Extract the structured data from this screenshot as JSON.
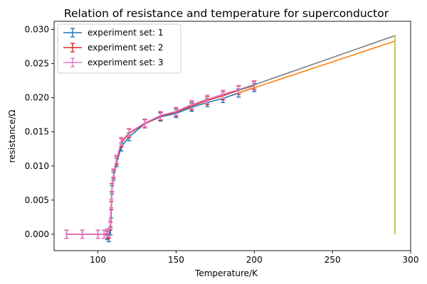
{
  "chart_data": {
    "type": "line",
    "title": "Relation of resistance and temperature for superconductor",
    "xlabel": "Temperature/K",
    "ylabel": "resistance/Ω",
    "xlim": [
      72,
      300
    ],
    "ylim": [
      -0.0024,
      0.0312
    ],
    "xticks": [
      100,
      150,
      200,
      250,
      300
    ],
    "yticks": [
      0.0,
      0.005,
      0.01,
      0.015,
      0.02,
      0.025,
      0.03
    ],
    "ytick_labels": [
      "0.000",
      "0.005",
      "0.010",
      "0.015",
      "0.020",
      "0.025",
      "0.030"
    ],
    "grid": false,
    "legend_position": "top-left",
    "series": [
      {
        "name": "experiment set: 1",
        "color": "#1f77b4",
        "errorbars": true,
        "x": [
          80,
          90,
          100,
          104,
          106,
          107,
          108,
          108.5,
          109,
          110,
          112,
          115,
          120,
          130,
          140,
          150,
          160,
          170,
          180,
          190,
          200
        ],
        "y": [
          0.0,
          0.0,
          0.0,
          0.0,
          -0.0002,
          -0.0005,
          0.0005,
          0.003,
          0.0065,
          0.0085,
          0.0105,
          0.0128,
          0.0143,
          0.0162,
          0.0172,
          0.0177,
          0.0186,
          0.0193,
          0.0199,
          0.0207,
          0.0215
        ],
        "yerr": [
          0.0006,
          0.0006,
          0.0006,
          0.0006,
          0.0006,
          0.0006,
          0.0006,
          0.0006,
          0.0006,
          0.0006,
          0.0006,
          0.0006,
          0.0006,
          0.0006,
          0.0006,
          0.0006,
          0.0006,
          0.0006,
          0.0006,
          0.0006,
          0.0006
        ]
      },
      {
        "name": "experiment set: 2",
        "color": "#d62728",
        "errorbars": true,
        "x": [
          80,
          90,
          100,
          104,
          106,
          107,
          108,
          108.5,
          109,
          110,
          112,
          115,
          120,
          130,
          140,
          150,
          160,
          170,
          180,
          190,
          200
        ],
        "y": [
          0.0,
          0.0,
          0.0,
          0.0,
          0.0,
          0.0,
          0.0012,
          0.0042,
          0.0068,
          0.0088,
          0.0108,
          0.0134,
          0.0148,
          0.0162,
          0.0173,
          0.0179,
          0.0188,
          0.0196,
          0.0203,
          0.0211,
          0.0218
        ],
        "yerr": [
          0.0006,
          0.0006,
          0.0006,
          0.0006,
          0.0006,
          0.0006,
          0.0006,
          0.0006,
          0.0006,
          0.0006,
          0.0006,
          0.0006,
          0.0006,
          0.0006,
          0.0006,
          0.0006,
          0.0006,
          0.0006,
          0.0006,
          0.0006,
          0.0006
        ]
      },
      {
        "name": "experiment set: 3",
        "color": "#e377c2",
        "errorbars": true,
        "x": [
          80,
          90,
          100,
          104,
          106,
          107,
          108,
          108.5,
          109,
          110,
          112,
          115,
          120,
          130,
          140,
          150,
          160,
          170,
          180,
          190,
          200
        ],
        "y": [
          0.0,
          0.0,
          0.0,
          0.0,
          0.0002,
          0.0002,
          0.0015,
          0.0045,
          0.0069,
          0.009,
          0.011,
          0.0136,
          0.0149,
          0.0163,
          0.0174,
          0.018,
          0.019,
          0.0198,
          0.0205,
          0.0212,
          0.0219
        ],
        "yerr": [
          0.0006,
          0.0006,
          0.0006,
          0.0006,
          0.0006,
          0.0006,
          0.0006,
          0.0006,
          0.0006,
          0.0006,
          0.0006,
          0.0006,
          0.0006,
          0.0006,
          0.0006,
          0.0006,
          0.0006,
          0.0006,
          0.0006,
          0.0006,
          0.0006
        ]
      },
      {
        "color": "#7f7f7f",
        "errorbars": false,
        "x": [
          190,
          290
        ],
        "y": [
          0.0211,
          0.0291
        ]
      },
      {
        "color": "#ff7f0e",
        "errorbars": false,
        "x": [
          190,
          290
        ],
        "y": [
          0.0207,
          0.0283
        ]
      },
      {
        "color": "#bcbd22",
        "errorbars": false,
        "x": [
          290,
          290
        ],
        "y": [
          0.0,
          0.0292
        ]
      }
    ]
  }
}
